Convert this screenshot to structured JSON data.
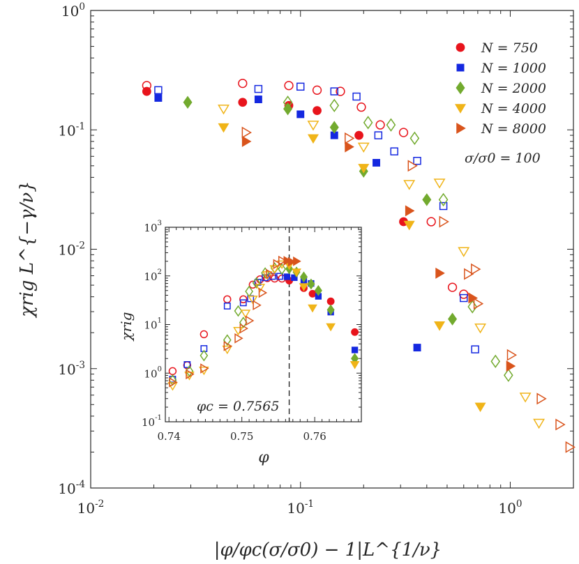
{
  "chart_data": [
    {
      "type": "scatter",
      "title": "",
      "xlabel": "|φ/φc(σ/σ0) − 1|L^{1/ν}",
      "ylabel": "χrig L^{−γ/ν}",
      "xscale": "log",
      "yscale": "log",
      "xlim": [
        0.01,
        2
      ],
      "ylim": [
        0.0001,
        1
      ],
      "grid": false,
      "legend_position": "top-right",
      "annotation": "σ/σ0 = 100",
      "x_ticks": [
        "10-2",
        "10-1",
        "100"
      ],
      "y_ticks": [
        "10-4",
        "10-3",
        "10-2",
        "10-1",
        "100"
      ],
      "series": [
        {
          "name": "N = 750",
          "color": "#e8141c",
          "below_filled": [
            [
              0.0185,
              0.21
            ],
            [
              0.053,
              0.17
            ],
            [
              0.088,
              0.16
            ],
            [
              0.12,
              0.145
            ],
            [
              0.19,
              0.09
            ],
            [
              0.31,
              0.017
            ]
          ],
          "above_open": [
            [
              0.0185,
              0.235
            ],
            [
              0.053,
              0.245
            ],
            [
              0.088,
              0.235
            ],
            [
              0.12,
              0.215
            ],
            [
              0.155,
              0.21
            ],
            [
              0.195,
              0.155
            ],
            [
              0.24,
              0.11
            ],
            [
              0.31,
              0.095
            ],
            [
              0.42,
              0.017
            ],
            [
              0.53,
              0.0048
            ],
            [
              0.6,
              0.0042
            ]
          ]
        },
        {
          "name": "N = 1000",
          "color": "#1428e0",
          "below_filled": [
            [
              0.021,
              0.185
            ],
            [
              0.063,
              0.18
            ],
            [
              0.1,
              0.135
            ],
            [
              0.145,
              0.09
            ],
            [
              0.23,
              0.053
            ],
            [
              0.36,
              0.0015
            ]
          ],
          "above_open": [
            [
              0.021,
              0.215
            ],
            [
              0.063,
              0.22
            ],
            [
              0.1,
              0.23
            ],
            [
              0.145,
              0.21
            ],
            [
              0.185,
              0.19
            ],
            [
              0.235,
              0.09
            ],
            [
              0.28,
              0.066
            ],
            [
              0.36,
              0.055
            ],
            [
              0.48,
              0.023
            ],
            [
              0.6,
              0.0039
            ],
            [
              0.68,
              0.00145
            ]
          ]
        },
        {
          "name": "N = 2000",
          "color": "#72aa2e",
          "below_filled": [
            [
              0.029,
              0.17
            ],
            [
              0.087,
              0.15
            ],
            [
              0.145,
              0.105
            ],
            [
              0.2,
              0.045
            ],
            [
              0.4,
              0.026
            ],
            [
              0.53,
              0.0026
            ]
          ],
          "above_open": [
            [
              0.087,
              0.17
            ],
            [
              0.145,
              0.16
            ],
            [
              0.21,
              0.115
            ],
            [
              0.27,
              0.11
            ],
            [
              0.35,
              0.085
            ],
            [
              0.48,
              0.026
            ],
            [
              0.66,
              0.0033
            ],
            [
              0.85,
              0.00115
            ],
            [
              0.98,
              0.00088
            ]
          ]
        },
        {
          "name": "N = 4000",
          "color": "#f0b418",
          "below_filled": [
            [
              0.043,
              0.105
            ],
            [
              0.115,
              0.085
            ],
            [
              0.2,
              0.048
            ],
            [
              0.33,
              0.016
            ],
            [
              0.46,
              0.0023
            ],
            [
              0.72,
              0.00048
            ]
          ],
          "above_open": [
            [
              0.043,
              0.15
            ],
            [
              0.115,
              0.11
            ],
            [
              0.2,
              0.072
            ],
            [
              0.33,
              0.035
            ],
            [
              0.46,
              0.036
            ],
            [
              0.6,
              0.0096
            ],
            [
              0.72,
              0.0022
            ],
            [
              1.18,
              0.00058
            ],
            [
              1.37,
              0.00035
            ]
          ]
        },
        {
          "name": "N = 8000",
          "color": "#d9541c",
          "below_filled": [
            [
              0.055,
              0.08
            ],
            [
              0.17,
              0.072
            ],
            [
              0.33,
              0.021
            ],
            [
              0.46,
              0.0063
            ],
            [
              0.66,
              0.0039
            ],
            [
              1.0,
              0.00105
            ]
          ],
          "above_open": [
            [
              0.055,
              0.095
            ],
            [
              0.17,
              0.085
            ],
            [
              0.34,
              0.05
            ],
            [
              0.48,
              0.017
            ],
            [
              0.63,
              0.0062
            ],
            [
              0.68,
              0.0068
            ],
            [
              0.7,
              0.0035
            ],
            [
              1.01,
              0.0013
            ],
            [
              1.4,
              0.00056
            ],
            [
              1.72,
              0.00034
            ],
            [
              1.92,
              0.00022
            ]
          ]
        }
      ]
    },
    {
      "type": "scatter",
      "title": "",
      "xlabel": "φ",
      "ylabel": "χrig",
      "xscale": "linear",
      "yscale": "log",
      "xlim": [
        0.7395,
        0.7664
      ],
      "ylim": [
        0.1,
        1000
      ],
      "x_ticks": [
        "0.74",
        "0.75",
        "0.76"
      ],
      "y_ticks": [
        "10-1",
        "100",
        "101",
        "102",
        "103"
      ],
      "vline": {
        "x": 0.7565,
        "label": "φc = 0.7565"
      },
      "series": [
        {
          "name": "N = 750",
          "color": "#e8141c",
          "open": [
            [
              0.7405,
              1.1
            ],
            [
              0.7425,
              1.45
            ],
            [
              0.7448,
              6.3
            ],
            [
              0.748,
              33
            ],
            [
              0.7502,
              33
            ],
            [
              0.7515,
              66
            ],
            [
              0.7525,
              85
            ],
            [
              0.7535,
              90
            ],
            [
              0.7545,
              88
            ],
            [
              0.7555,
              88
            ]
          ],
          "filled": [
            [
              0.7565,
              80
            ],
            [
              0.7585,
              56
            ],
            [
              0.7597,
              43
            ],
            [
              0.7622,
              30
            ],
            [
              0.7655,
              7
            ]
          ]
        },
        {
          "name": "N = 1000",
          "color": "#1428e0",
          "open": [
            [
              0.7405,
              0.75
            ],
            [
              0.7425,
              1.5
            ],
            [
              0.7448,
              3.2
            ],
            [
              0.748,
              24
            ],
            [
              0.7502,
              28
            ],
            [
              0.7512,
              34
            ],
            [
              0.7522,
              74
            ],
            [
              0.7532,
              92
            ],
            [
              0.7542,
              98
            ],
            [
              0.7552,
              98
            ]
          ],
          "filled": [
            [
              0.7562,
              96
            ],
            [
              0.7572,
              92
            ],
            [
              0.7585,
              78
            ],
            [
              0.7595,
              70
            ],
            [
              0.7605,
              38
            ],
            [
              0.7622,
              18
            ],
            [
              0.7655,
              3
            ]
          ]
        },
        {
          "name": "N = 2000",
          "color": "#72aa2e",
          "open": [
            [
              0.7405,
              0.72
            ],
            [
              0.7428,
              1.1
            ],
            [
              0.7448,
              2.3
            ],
            [
              0.748,
              4.8
            ],
            [
              0.7495,
              19
            ],
            [
              0.7502,
              11
            ],
            [
              0.751,
              48
            ],
            [
              0.752,
              72
            ],
            [
              0.7532,
              115
            ],
            [
              0.7545,
              145
            ],
            [
              0.7555,
              138
            ]
          ],
          "filled": [
            [
              0.7565,
              140
            ],
            [
              0.7575,
              120
            ],
            [
              0.7585,
              95
            ],
            [
              0.7595,
              68
            ],
            [
              0.7605,
              50
            ],
            [
              0.7622,
              20
            ],
            [
              0.7655,
              2
            ]
          ]
        },
        {
          "name": "N = 4000",
          "color": "#f0b418",
          "open": [
            [
              0.7405,
              0.55
            ],
            [
              0.7428,
              0.9
            ],
            [
              0.7448,
              1.15
            ],
            [
              0.748,
              3.1
            ],
            [
              0.7495,
              7.5
            ],
            [
              0.7505,
              17
            ],
            [
              0.7515,
              33
            ],
            [
              0.7525,
              58
            ],
            [
              0.7535,
              105
            ],
            [
              0.7545,
              140
            ],
            [
              0.7555,
              175
            ]
          ],
          "filled": [
            [
              0.7565,
              165
            ],
            [
              0.7575,
              120
            ],
            [
              0.7585,
              60
            ],
            [
              0.7597,
              22
            ],
            [
              0.7622,
              9
            ],
            [
              0.7655,
              1.5
            ]
          ]
        },
        {
          "name": "N = 8000",
          "color": "#d9541c",
          "open": [
            [
              0.7405,
              0.65
            ],
            [
              0.7428,
              0.95
            ],
            [
              0.7448,
              1.25
            ],
            [
              0.748,
              3.6
            ],
            [
              0.7495,
              5.2
            ],
            [
              0.7502,
              8.3
            ],
            [
              0.751,
              12
            ],
            [
              0.752,
              25
            ],
            [
              0.7528,
              45
            ],
            [
              0.7538,
              110
            ],
            [
              0.7548,
              175
            ],
            [
              0.7555,
              205
            ]
          ],
          "filled": [
            [
              0.7562,
              205
            ],
            [
              0.7568,
              195
            ],
            [
              0.7575,
              200
            ]
          ]
        }
      ]
    }
  ]
}
